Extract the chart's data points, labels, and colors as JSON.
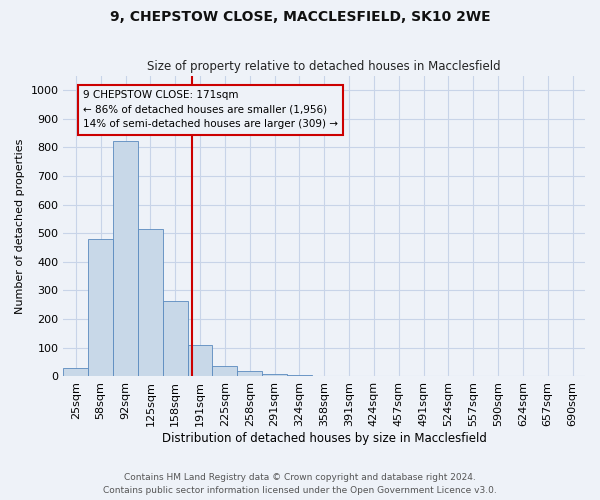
{
  "title_line1": "9, CHEPSTOW CLOSE, MACCLESFIELD, SK10 2WE",
  "title_line2": "Size of property relative to detached houses in Macclesfield",
  "xlabel": "Distribution of detached houses by size in Macclesfield",
  "ylabel": "Number of detached properties",
  "categories": [
    "25sqm",
    "58sqm",
    "92sqm",
    "125sqm",
    "158sqm",
    "191sqm",
    "225sqm",
    "258sqm",
    "291sqm",
    "324sqm",
    "358sqm",
    "391sqm",
    "424sqm",
    "457sqm",
    "491sqm",
    "524sqm",
    "557sqm",
    "590sqm",
    "624sqm",
    "657sqm",
    "690sqm"
  ],
  "values": [
    28,
    480,
    820,
    515,
    265,
    110,
    38,
    20,
    10,
    5,
    0,
    0,
    0,
    0,
    0,
    0,
    0,
    0,
    0,
    0,
    0
  ],
  "bar_color": "#c8d8e8",
  "bar_edge_color": "#5a8abf",
  "vertical_line_x": 4.67,
  "vertical_line_color": "#cc0000",
  "annotation_box_text": "9 CHEPSTOW CLOSE: 171sqm\n← 86% of detached houses are smaller (1,956)\n14% of semi-detached houses are larger (309) →",
  "annotation_box_color": "#cc0000",
  "ylim": [
    0,
    1050
  ],
  "yticks": [
    0,
    100,
    200,
    300,
    400,
    500,
    600,
    700,
    800,
    900,
    1000
  ],
  "grid_color": "#c8d4e8",
  "background_color": "#eef2f8",
  "footer_line1": "Contains HM Land Registry data © Crown copyright and database right 2024.",
  "footer_line2": "Contains public sector information licensed under the Open Government Licence v3.0."
}
